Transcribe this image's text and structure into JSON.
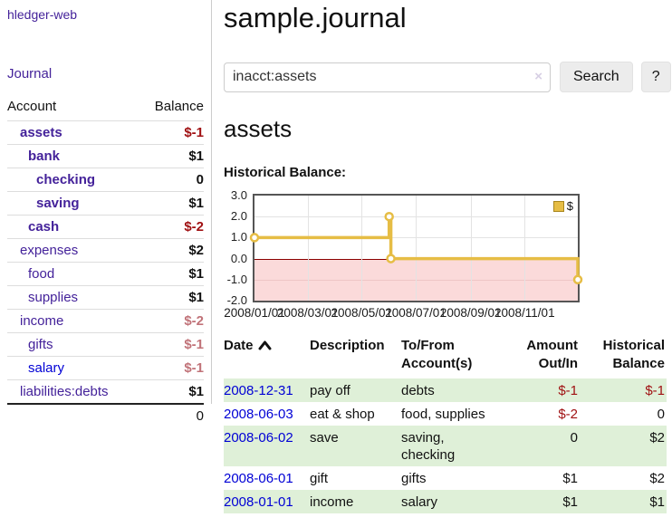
{
  "colors": {
    "purple_link": "#44229a",
    "blue_link": "#0000d5",
    "negative": "#a01113",
    "negative_muted": "#c17379",
    "row_highlight": "#dff0d8",
    "chart_line": "#e6bd45",
    "chart_negative_bg": "#fbdada",
    "zero_line": "#8b0000"
  },
  "sidebar": {
    "brand": "hledger-web",
    "journal_link": "Journal",
    "accounts_table": {
      "headers": [
        "Account",
        "Balance"
      ],
      "rows": [
        {
          "name": "assets",
          "indent": 0,
          "matched": true,
          "balance": "$-1",
          "balance_tone": "negative",
          "link_tone": "purple"
        },
        {
          "name": "bank",
          "indent": 1,
          "matched": true,
          "balance": "$1",
          "balance_tone": "normal",
          "link_tone": "purple"
        },
        {
          "name": "checking",
          "indent": 2,
          "matched": true,
          "balance": "0",
          "balance_tone": "normal",
          "link_tone": "purple"
        },
        {
          "name": "saving",
          "indent": 2,
          "matched": true,
          "balance": "$1",
          "balance_tone": "normal",
          "link_tone": "purple"
        },
        {
          "name": "cash",
          "indent": 1,
          "matched": true,
          "balance": "$-2",
          "balance_tone": "negative",
          "link_tone": "purple"
        },
        {
          "name": "expenses",
          "indent": 0,
          "matched": false,
          "balance": "$2",
          "balance_tone": "normal",
          "link_tone": "purple"
        },
        {
          "name": "food",
          "indent": 1,
          "matched": false,
          "balance": "$1",
          "balance_tone": "normal",
          "link_tone": "purple"
        },
        {
          "name": "supplies",
          "indent": 1,
          "matched": false,
          "balance": "$1",
          "balance_tone": "normal",
          "link_tone": "purple"
        },
        {
          "name": "income",
          "indent": 0,
          "matched": false,
          "balance": "$-2",
          "balance_tone": "negative-muted",
          "link_tone": "purple"
        },
        {
          "name": "gifts",
          "indent": 1,
          "matched": false,
          "balance": "$-1",
          "balance_tone": "negative-muted",
          "link_tone": "purple"
        },
        {
          "name": "salary",
          "indent": 1,
          "matched": false,
          "balance": "$-1",
          "balance_tone": "negative-muted",
          "link_tone": "blue"
        },
        {
          "name": "liabilities:debts",
          "indent": 0,
          "matched": false,
          "balance": "$1",
          "balance_tone": "normal",
          "link_tone": "purple"
        }
      ],
      "total": "0"
    }
  },
  "main": {
    "title": "sample.journal",
    "search": {
      "value": "inacct:assets",
      "clear_label": "×",
      "button": "Search",
      "help_button": "?"
    },
    "account_heading": "assets",
    "section_label": "Historical Balance:"
  },
  "chart_data": {
    "type": "line",
    "title": "Historical Balance",
    "step": true,
    "series": [
      {
        "name": "$",
        "color": "#e6bd45",
        "points": [
          [
            "2008-01-01",
            1
          ],
          [
            "2008-06-01",
            2
          ],
          [
            "2008-06-03",
            0
          ],
          [
            "2008-12-31",
            -1
          ]
        ]
      }
    ],
    "x_ticks": [
      "2008/01/01",
      "2008/03/01",
      "2008/05/01",
      "2008/07/01",
      "2008/09/01",
      "2008/11/01"
    ],
    "y_ticks": [
      "3.0",
      "2.0",
      "1.0",
      "0.0",
      "-1.0",
      "-2.0"
    ],
    "ylim": [
      -2,
      3
    ],
    "xlim": [
      "2008-01-01",
      "2008-12-31"
    ],
    "grid": true,
    "legend": {
      "position": "top-right",
      "label": "$"
    },
    "negative_region_color": "#fbdada"
  },
  "register": {
    "headers": [
      {
        "label": "Date",
        "sort": "asc",
        "align": "left"
      },
      {
        "label": "Description",
        "align": "left"
      },
      {
        "label": "To/From Account(s)",
        "align": "left"
      },
      {
        "label": "Amount Out/In",
        "align": "right"
      },
      {
        "label": "Historical Balance",
        "align": "right"
      }
    ],
    "rows": [
      {
        "date": "2008-12-31",
        "description": "pay off",
        "accounts": "debts",
        "amount": "$-1",
        "amount_tone": "negative",
        "balance": "$-1",
        "balance_tone": "negative",
        "highlight": true
      },
      {
        "date": "2008-06-03",
        "description": "eat & shop",
        "accounts": "food, supplies",
        "amount": "$-2",
        "amount_tone": "negative",
        "balance": "0",
        "balance_tone": "normal",
        "highlight": false
      },
      {
        "date": "2008-06-02",
        "description": "save",
        "accounts": "saving, checking",
        "amount": "0",
        "amount_tone": "normal",
        "balance": "$2",
        "balance_tone": "normal",
        "highlight": true
      },
      {
        "date": "2008-06-01",
        "description": "gift",
        "accounts": "gifts",
        "amount": "$1",
        "amount_tone": "normal",
        "balance": "$2",
        "balance_tone": "normal",
        "highlight": false
      },
      {
        "date": "2008-01-01",
        "description": "income",
        "accounts": "salary",
        "amount": "$1",
        "amount_tone": "normal",
        "balance": "$1",
        "balance_tone": "normal",
        "highlight": true
      }
    ]
  }
}
